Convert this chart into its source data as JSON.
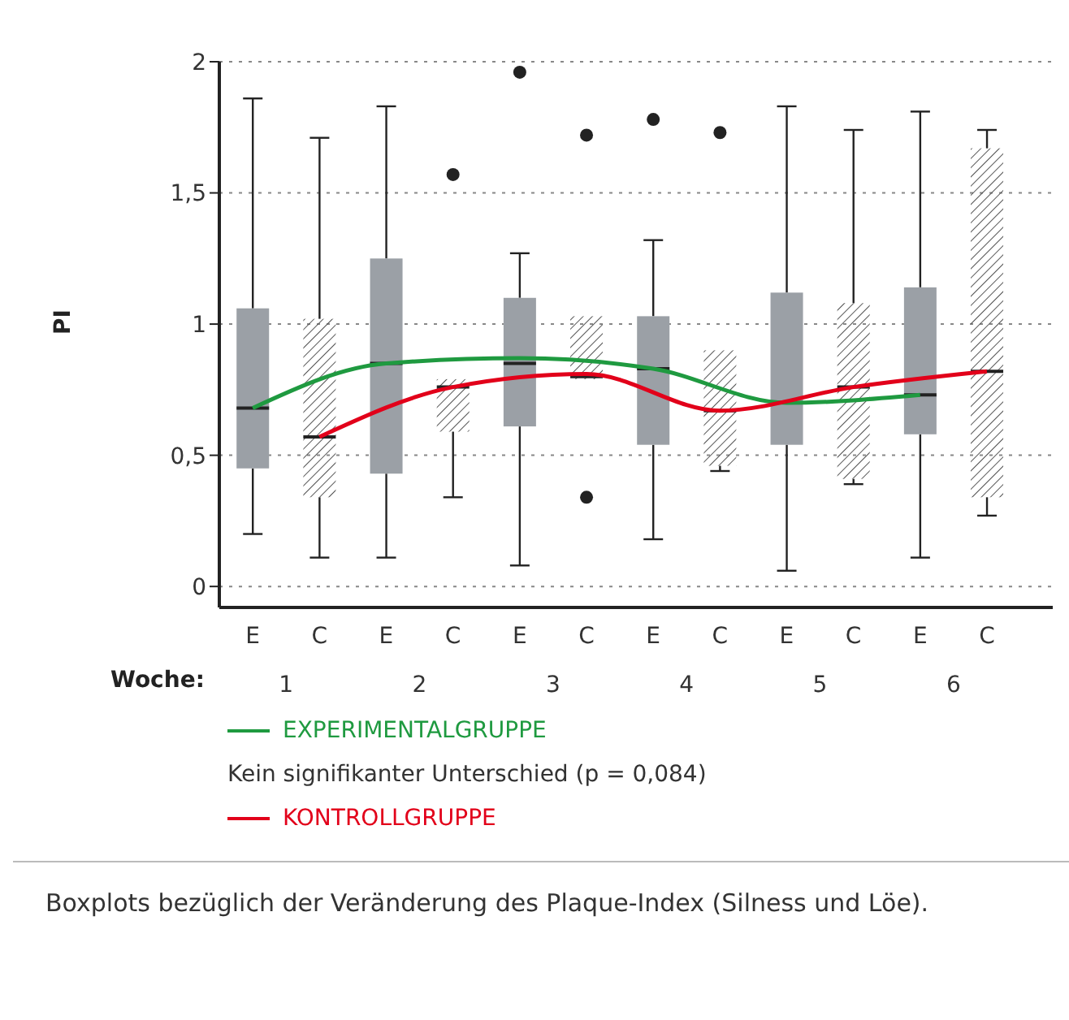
{
  "chart_data": {
    "type": "box",
    "ylabel": "PI",
    "xlabel": "Woche:",
    "categories": [
      "E",
      "C",
      "E",
      "C",
      "E",
      "C",
      "E",
      "C",
      "E",
      "C",
      "E",
      "C"
    ],
    "series": [
      {
        "color": "#9ba0a6",
        "boxes": [
          {
            "low": 0.2,
            "q1": 0.45,
            "median": 0.68,
            "q3": 1.06,
            "high": 1.86
          },
          null,
          {
            "low": 0.11,
            "q1": 0.43,
            "median": 0.85,
            "q3": 1.25,
            "high": 1.83
          },
          null,
          {
            "low": 0.08,
            "q1": 0.61,
            "median": 0.85,
            "q3": 1.1,
            "high": 1.27,
            "outliers": [
              1.96
            ]
          },
          null,
          {
            "low": 0.18,
            "q1": 0.54,
            "median": 0.83,
            "q3": 1.03,
            "high": 1.32,
            "outliers": [
              1.78
            ]
          },
          null,
          {
            "low": 0.06,
            "q1": 0.54,
            "median": 0.7,
            "q3": 1.12,
            "high": 1.83
          },
          null,
          {
            "low": 0.11,
            "q1": 0.58,
            "median": 0.73,
            "q3": 1.14,
            "high": 1.81
          },
          null
        ]
      },
      {
        "color": "#555555",
        "boxes": [
          null,
          {
            "low": 0.11,
            "q1": 0.34,
            "median": 0.57,
            "q3": 1.02,
            "high": 1.71
          },
          null,
          {
            "low": 0.34,
            "q1": 0.59,
            "median": 0.76,
            "q3": 0.79,
            "high": 0.79,
            "outliers": [
              1.57
            ]
          },
          null,
          {
            "low": 0.79,
            "q1": 0.79,
            "median": 0.8,
            "q3": 1.03,
            "high": 1.03,
            "outliers": [
              1.72,
              0.34
            ]
          },
          null,
          {
            "low": 0.44,
            "q1": 0.46,
            "median": 0.67,
            "q3": 0.9,
            "high": 0.9,
            "outliers": [
              1.73
            ]
          },
          null,
          {
            "low": 0.39,
            "q1": 0.41,
            "median": 0.76,
            "q3": 1.08,
            "high": 1.74
          },
          null,
          {
            "low": 0.27,
            "q1": 0.34,
            "median": 0.82,
            "q3": 1.67,
            "high": 1.74
          }
        ]
      },
      {
        "type": "line",
        "name": "EXPERIMENTALGRUPPE",
        "color": "#1f9a40",
        "values": [
          0.68,
          null,
          0.85,
          null,
          0.87,
          null,
          0.83,
          null,
          0.7,
          null,
          0.73,
          null
        ]
      },
      {
        "type": "line",
        "name": "KONTROLLGRUPPE",
        "color": "#e2001a",
        "values": [
          null,
          0.57,
          null,
          0.76,
          null,
          0.81,
          null,
          0.67,
          null,
          0.76,
          null,
          0.82
        ]
      }
    ],
    "ylim": [
      -0.08,
      2
    ],
    "yticks": [
      0,
      {
        "value": 0.5,
        "label": "0,5"
      },
      1,
      {
        "value": 1.5,
        "label": "1,5"
      },
      2
    ],
    "grid": "y",
    "legend": "bottom",
    "annotations": [
      "1",
      "2",
      "3",
      "4",
      "5",
      "6",
      "Kein signifikanter Unterschied (p = 0,084)",
      "Boxplots bezüglich der Veränderung des Plaque-Index (Silness und Löe)."
    ]
  }
}
